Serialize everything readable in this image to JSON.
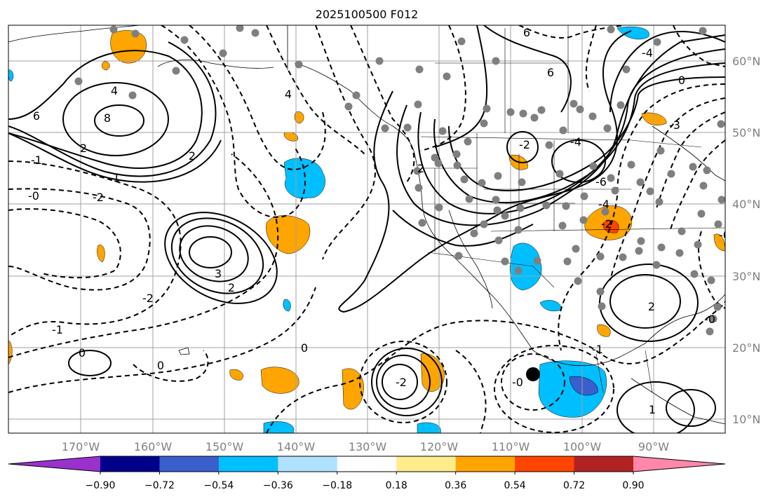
{
  "title": "2025100500 F012",
  "map": {
    "lon_labels": [
      "170°W",
      "160°W",
      "150°W",
      "140°W",
      "130°W",
      "120°W",
      "110°W",
      "100°W",
      "90°W"
    ],
    "lat_labels": [
      "60°N",
      "50°N",
      "40°N",
      "30°N",
      "20°N",
      "10°N"
    ],
    "contour_labels": [
      {
        "text": "6"
      },
      {
        "text": "8"
      },
      {
        "text": "4"
      },
      {
        "text": "2"
      },
      {
        "text": "-0"
      },
      {
        "text": "-1"
      },
      {
        "text": "-2"
      },
      {
        "text": "1"
      },
      {
        "text": "3"
      },
      {
        "text": "2"
      },
      {
        "text": "0"
      },
      {
        "text": "-1"
      },
      {
        "text": "0"
      },
      {
        "text": "0"
      },
      {
        "text": "-0"
      },
      {
        "text": "-2"
      },
      {
        "text": "6"
      },
      {
        "text": "-2"
      },
      {
        "text": "-4"
      },
      {
        "text": "6"
      },
      {
        "text": "-6"
      },
      {
        "text": "-4"
      },
      {
        "text": "2"
      },
      {
        "text": "-3"
      },
      {
        "text": "-4"
      },
      {
        "text": "0"
      },
      {
        "text": "-2"
      },
      {
        "text": "2"
      },
      {
        "text": "-0"
      },
      {
        "text": "-1"
      },
      {
        "text": "-0"
      },
      {
        "text": "2"
      },
      {
        "text": "4"
      },
      {
        "text": "1"
      },
      {
        "text": "-2"
      }
    ]
  },
  "colorbar": {
    "ticks": [
      "−0.90",
      "−0.72",
      "−0.54",
      "−0.36",
      "−0.18",
      "0.18",
      "0.36",
      "0.54",
      "0.72",
      "0.90"
    ],
    "colors": [
      "#9932cc",
      "#00008b",
      "#3a5fcd",
      "#00bfff",
      "#b0e2ff",
      "#ffffff",
      "#ffec8b",
      "#ffa500",
      "#ff4500",
      "#b22222",
      "#ff88aa"
    ]
  }
}
